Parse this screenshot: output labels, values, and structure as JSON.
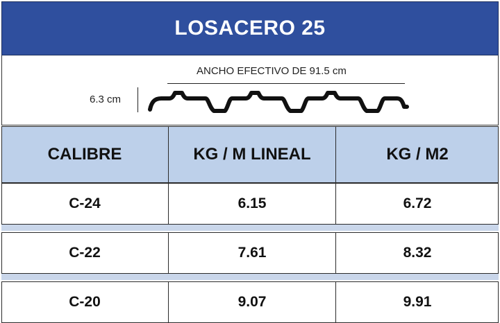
{
  "title": "LOSACERO 25",
  "diagram": {
    "width_label": "ANCHO EFECTIVO DE 91.5 cm",
    "height_label": "6.3 cm"
  },
  "table": {
    "headers": [
      "CALIBRE",
      "KG / M LINEAL",
      "KG / M2"
    ],
    "rows": [
      [
        "C-24",
        "6.15",
        "6.72"
      ],
      [
        "C-22",
        "7.61",
        "8.32"
      ],
      [
        "C-20",
        "9.07",
        "9.91"
      ]
    ]
  },
  "colors": {
    "title_bg": "#2f4f9e",
    "header_bg": "#bdd0ea",
    "gap_band": "#c9d6ea"
  }
}
